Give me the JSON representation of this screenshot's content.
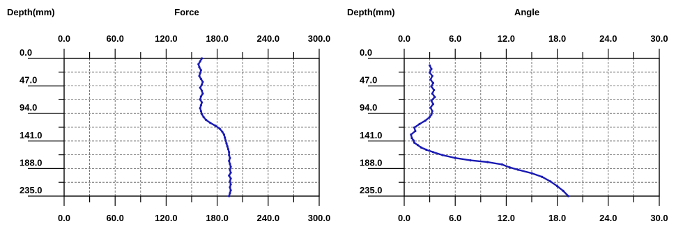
{
  "chart_data": [
    {
      "type": "line",
      "title": "Force",
      "ylabel": "Depth(mm)",
      "xlabel": "",
      "xlim": [
        0,
        300
      ],
      "ylim": [
        0,
        235
      ],
      "y_inverted": true,
      "x_tick_labels": [
        "0.0",
        "60.0",
        "120.0",
        "180.0",
        "240.0",
        "300.0"
      ],
      "y_tick_labels": [
        "0.0",
        "47.0",
        "94.0",
        "141.0",
        "188.0",
        "235.0"
      ],
      "grid": true,
      "x_axis_position": "top-and-bottom",
      "series": [
        {
          "color": "#1a1ab4",
          "points": [
            [
              162,
              0
            ],
            [
              160,
              5
            ],
            [
              158,
              10
            ],
            [
              159,
              15
            ],
            [
              161,
              20
            ],
            [
              160,
              25
            ],
            [
              159,
              30
            ],
            [
              161,
              35
            ],
            [
              163,
              40
            ],
            [
              162,
              45
            ],
            [
              160,
              50
            ],
            [
              162,
              55
            ],
            [
              163,
              60
            ],
            [
              161,
              65
            ],
            [
              160,
              70
            ],
            [
              162,
              75
            ],
            [
              161,
              80
            ],
            [
              160,
              85
            ],
            [
              161,
              90
            ],
            [
              162,
              95
            ],
            [
              164,
              100
            ],
            [
              167,
              105
            ],
            [
              172,
              110
            ],
            [
              178,
              115
            ],
            [
              183,
              120
            ],
            [
              186,
              125
            ],
            [
              188,
              130
            ],
            [
              189,
              135
            ],
            [
              190,
              140
            ],
            [
              191,
              145
            ],
            [
              192,
              150
            ],
            [
              193,
              155
            ],
            [
              194,
              160
            ],
            [
              194,
              165
            ],
            [
              195,
              170
            ],
            [
              194,
              175
            ],
            [
              195,
              180
            ],
            [
              196,
              185
            ],
            [
              195,
              190
            ],
            [
              196,
              195
            ],
            [
              194,
              200
            ],
            [
              196,
              205
            ],
            [
              195,
              210
            ],
            [
              196,
              215
            ],
            [
              195,
              220
            ],
            [
              196,
              225
            ],
            [
              195,
              230
            ],
            [
              194,
              235
            ]
          ]
        }
      ]
    },
    {
      "type": "line",
      "title": "Angle",
      "ylabel": "Depth(mm)",
      "xlabel": "",
      "xlim": [
        0,
        30
      ],
      "ylim": [
        0,
        235
      ],
      "y_inverted": true,
      "x_tick_labels": [
        "0.0",
        "6.0",
        "12.0",
        "18.0",
        "24.0",
        "30.0"
      ],
      "y_tick_labels": [
        "0.0",
        "47.0",
        "94.0",
        "141.0",
        "188.0",
        "235.0"
      ],
      "grid": true,
      "x_axis_position": "top-and-bottom",
      "series": [
        {
          "color": "#1a1ab4",
          "points": [
            [
              3.0,
              12
            ],
            [
              3.2,
              18
            ],
            [
              3.0,
              24
            ],
            [
              3.3,
              30
            ],
            [
              3.1,
              36
            ],
            [
              3.4,
              42
            ],
            [
              3.2,
              48
            ],
            [
              3.5,
              54
            ],
            [
              3.3,
              60
            ],
            [
              3.6,
              66
            ],
            [
              3.2,
              72
            ],
            [
              3.4,
              78
            ],
            [
              3.1,
              84
            ],
            [
              3.3,
              90
            ],
            [
              3.2,
              96
            ],
            [
              3.0,
              100
            ],
            [
              2.5,
              106
            ],
            [
              1.8,
              112
            ],
            [
              1.2,
              118
            ],
            [
              1.3,
              124
            ],
            [
              0.8,
              130
            ],
            [
              0.9,
              136
            ],
            [
              1.1,
              140
            ],
            [
              1.2,
              144
            ],
            [
              1.6,
              148
            ],
            [
              2.0,
              152
            ],
            [
              2.6,
              156
            ],
            [
              3.4,
              160
            ],
            [
              4.5,
              165
            ],
            [
              6.0,
              170
            ],
            [
              7.8,
              174
            ],
            [
              9.8,
              177
            ],
            [
              11.5,
              181
            ],
            [
              12.4,
              186
            ],
            [
              13.4,
              190
            ],
            [
              15.0,
              196
            ],
            [
              16.2,
              202
            ],
            [
              17.2,
              210
            ],
            [
              18.0,
              218
            ],
            [
              18.7,
              226
            ],
            [
              19.3,
              235
            ]
          ]
        }
      ]
    }
  ]
}
